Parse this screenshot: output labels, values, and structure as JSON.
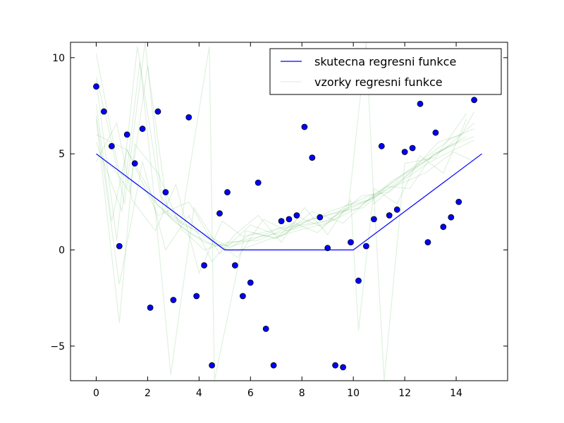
{
  "chart_data": {
    "type": "scatter",
    "title": "",
    "xlabel": "",
    "ylabel": "",
    "xlim": [
      -1,
      16
    ],
    "ylim": [
      -6.8,
      10.8
    ],
    "x_ticks": [
      0,
      2,
      4,
      6,
      8,
      10,
      12,
      14
    ],
    "y_ticks": [
      -5,
      0,
      5,
      10
    ],
    "x_tick_labels": [
      "0",
      "2",
      "4",
      "6",
      "8",
      "10",
      "12",
      "14"
    ],
    "y_tick_labels": [
      "−5",
      "0",
      "5",
      "10"
    ],
    "grid": false,
    "legend_position": "top-right",
    "legend": [
      {
        "label": "skutecna regresni funkce",
        "color": "#0000ff"
      },
      {
        "label": "vzorky regresni funkce",
        "color": "#2ca02c"
      }
    ],
    "true_function": {
      "name": "skutecna regresni funkce",
      "color": "#0000ff",
      "x": [
        0,
        5,
        10,
        15
      ],
      "y": [
        5,
        0,
        0,
        5
      ]
    },
    "points": {
      "color": "#0000ff",
      "x": [
        0.0,
        0.3,
        0.6,
        0.9,
        1.2,
        1.5,
        1.8,
        2.1,
        2.4,
        2.7,
        3.0,
        3.6,
        3.9,
        4.2,
        4.5,
        4.8,
        5.1,
        5.4,
        5.7,
        6.0,
        6.3,
        6.6,
        6.9,
        7.2,
        7.5,
        7.8,
        8.1,
        8.4,
        8.7,
        9.0,
        9.3,
        9.6,
        9.9,
        10.2,
        10.5,
        10.8,
        11.1,
        11.4,
        11.7,
        12.0,
        12.3,
        12.6,
        12.9,
        13.2,
        13.5,
        13.8,
        14.1,
        14.7
      ],
      "y": [
        8.5,
        7.2,
        5.4,
        0.2,
        6.0,
        4.5,
        6.3,
        -3.0,
        7.2,
        3.0,
        -2.6,
        6.9,
        -2.4,
        -0.8,
        -6.0,
        1.9,
        3.0,
        -0.8,
        -2.4,
        -1.7,
        3.5,
        -4.1,
        -6.0,
        1.5,
        1.6,
        1.8,
        6.4,
        4.8,
        1.7,
        0.1,
        -6.0,
        -6.1,
        0.4,
        -1.6,
        0.2,
        1.6,
        5.4,
        1.8,
        2.1,
        5.1,
        5.3,
        7.6,
        0.4,
        6.1,
        1.2,
        1.7,
        2.5,
        7.8
      ]
    },
    "sample_functions": [
      {
        "x": [
          0.0,
          0.9,
          1.8,
          3.0,
          4.2,
          5.4,
          6.6,
          7.8,
          9.0,
          10.2,
          11.4,
          12.6,
          13.8,
          14.7
        ],
        "y": [
          10.2,
          4.0,
          3.2,
          1.5,
          0.4,
          -0.1,
          0.5,
          1.0,
          1.4,
          2.2,
          3.4,
          4.6,
          5.8,
          6.3
        ]
      },
      {
        "x": [
          0.0,
          0.6,
          1.2,
          2.4,
          3.6,
          4.8,
          6.0,
          7.2,
          8.4,
          9.6,
          10.8,
          12.0,
          13.2,
          14.4
        ],
        "y": [
          7.6,
          1.5,
          5.2,
          2.3,
          1.2,
          0.2,
          0.6,
          0.9,
          1.6,
          2.0,
          2.7,
          3.8,
          5.0,
          5.9
        ]
      },
      {
        "x": [
          0.0,
          0.9,
          1.5,
          2.4,
          3.3,
          4.2,
          5.1,
          6.3,
          7.5,
          8.7,
          9.9,
          11.1,
          12.3,
          13.5,
          14.7
        ],
        "y": [
          6.8,
          -3.8,
          5.5,
          4.0,
          1.1,
          0.0,
          0.4,
          0.5,
          1.2,
          1.8,
          2.4,
          3.1,
          4.2,
          5.2,
          6.6
        ]
      },
      {
        "x": [
          0.0,
          1.0,
          1.7,
          2.2,
          2.9,
          3.8,
          4.6,
          5.5,
          6.5,
          7.4,
          8.3,
          9.3,
          10.3,
          11.4,
          12.5,
          13.7,
          14.7
        ],
        "y": [
          5.6,
          2.0,
          9.8,
          3.5,
          -6.5,
          2.2,
          0.5,
          -0.4,
          1.6,
          1.0,
          1.3,
          1.6,
          2.8,
          3.0,
          4.4,
          5.4,
          5.9
        ]
      },
      {
        "x": [
          0.0,
          0.8,
          1.6,
          2.5,
          3.3,
          4.4,
          4.6,
          5.8,
          7.0,
          8.2,
          9.4,
          10.6,
          11.8,
          13.0,
          14.2,
          14.7
        ],
        "y": [
          8.8,
          0.5,
          10.6,
          2.8,
          1.4,
          10.6,
          -6.8,
          1.0,
          0.6,
          1.5,
          2.0,
          2.6,
          3.5,
          4.6,
          5.4,
          5.7
        ]
      },
      {
        "x": [
          0.0,
          0.7,
          1.3,
          2.0,
          2.8,
          3.6,
          4.5,
          5.3,
          6.2,
          7.1,
          8.0,
          8.9,
          9.8,
          10.5,
          10.8,
          11.6,
          12.8,
          13.9,
          14.7
        ],
        "y": [
          5.0,
          4.2,
          3.0,
          9.6,
          1.8,
          0.9,
          0.3,
          0.2,
          0.6,
          1.1,
          1.3,
          1.5,
          2.1,
          10.8,
          2.4,
          3.3,
          4.0,
          5.1,
          4.6
        ]
      },
      {
        "x": [
          0.0,
          0.9,
          1.8,
          2.7,
          3.6,
          4.5,
          5.4,
          6.3,
          7.2,
          8.1,
          9.0,
          9.9,
          10.2,
          10.8,
          11.7,
          12.6,
          13.5,
          14.4
        ],
        "y": [
          7.0,
          -1.8,
          4.6,
          0.0,
          1.8,
          -0.6,
          0.8,
          1.8,
          0.4,
          2.2,
          0.8,
          2.6,
          -4.2,
          3.2,
          2.4,
          4.9,
          4.0,
          6.8
        ]
      },
      {
        "x": [
          0.0,
          1.2,
          2.4,
          3.6,
          4.8,
          6.0,
          7.2,
          8.4,
          9.6,
          10.8,
          11.2,
          12.0,
          13.2,
          14.4
        ],
        "y": [
          6.0,
          5.2,
          1.8,
          2.5,
          -0.2,
          1.3,
          0.7,
          2.0,
          1.4,
          2.9,
          -6.8,
          4.5,
          4.8,
          7.1
        ]
      },
      {
        "x": [
          0.0,
          0.5,
          1.1,
          1.9,
          2.6,
          3.4,
          4.3,
          5.2,
          6.1,
          7.0,
          7.9,
          8.8,
          9.7,
          10.6,
          11.5,
          12.4,
          13.3,
          14.2
        ],
        "y": [
          9.0,
          6.2,
          2.4,
          10.8,
          2.0,
          1.3,
          0.8,
          0.1,
          0.9,
          0.6,
          1.7,
          1.2,
          2.3,
          2.6,
          3.6,
          4.3,
          5.6,
          6.0
        ]
      },
      {
        "x": [
          0.0,
          0.8,
          1.4,
          2.3,
          3.1,
          4.0,
          4.9,
          5.7,
          6.8,
          7.7,
          8.6,
          9.5,
          10.4,
          11.3,
          12.2,
          13.1,
          14.0,
          14.7
        ],
        "y": [
          4.6,
          6.6,
          2.6,
          1.0,
          3.4,
          -1.2,
          1.5,
          0.7,
          1.0,
          1.4,
          0.9,
          2.0,
          2.2,
          3.3,
          3.2,
          5.0,
          5.5,
          7.2
        ]
      }
    ]
  }
}
